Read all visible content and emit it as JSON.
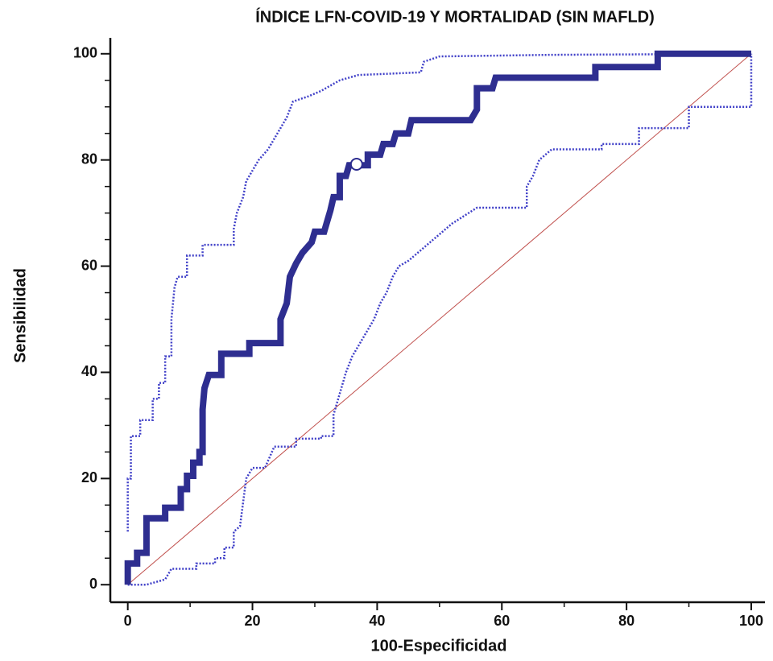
{
  "chart_data": {
    "type": "line",
    "title": "ÍNDICE LFN-COVID-19 Y MORTALIDAD (SIN MAFLD)",
    "x_label": "100-Especificidad",
    "y_label": "Sensibilidad",
    "xlim": [
      -2.8,
      102.2
    ],
    "ylim": [
      -3.3,
      103
    ],
    "xticks": [
      0,
      20,
      40,
      60,
      80,
      100
    ],
    "xminor_ticks": [
      10,
      30,
      50,
      70,
      90
    ],
    "yticks": [
      0,
      20,
      40,
      60,
      80,
      100
    ],
    "yminor_ticks": [
      5,
      10,
      15,
      25,
      30,
      35,
      45,
      50,
      55,
      65,
      70,
      75,
      85,
      90,
      95
    ],
    "series": [
      {
        "style": "solid-thin",
        "color": "#c0504d",
        "x": [
          0,
          100
        ],
        "y": [
          0,
          100
        ]
      },
      {
        "style": "dotted",
        "color": "#4040c8",
        "x": [
          0,
          0,
          0.5,
          0.5,
          2,
          2,
          4,
          4,
          5,
          5,
          6,
          6,
          7,
          7,
          7.5,
          8,
          9.5,
          9.5,
          12,
          12,
          17,
          17,
          17.5,
          18.5,
          19,
          20,
          21,
          22.5,
          23.5,
          24.5,
          25.5,
          26.5,
          29,
          31,
          34,
          37,
          47,
          47.5,
          50,
          68,
          100
        ],
        "y": [
          10,
          20,
          20,
          28,
          28,
          31,
          31,
          35,
          35,
          38,
          38,
          43,
          43,
          50,
          56,
          58,
          58,
          62,
          62,
          64,
          64,
          67,
          70,
          73,
          76,
          78,
          80,
          82,
          84,
          86,
          88,
          91,
          92,
          93,
          95,
          96,
          96.5,
          98.5,
          99.5,
          99.8,
          100
        ]
      },
      {
        "style": "dotted",
        "color": "#4040c8",
        "x": [
          0,
          3,
          6,
          7,
          11,
          11,
          14,
          14,
          15.5,
          15.5,
          17,
          17,
          18,
          19,
          20,
          22,
          23.5,
          27,
          27,
          31,
          31,
          33,
          33,
          34,
          35,
          36,
          37,
          38,
          39.5,
          40.5,
          41.5,
          42.5,
          43.5,
          45,
          47,
          49,
          52,
          56,
          64,
          64,
          65,
          66,
          68,
          76,
          76,
          82,
          82,
          90,
          90,
          100,
          100
        ],
        "y": [
          0,
          0,
          1,
          3,
          3,
          4,
          4,
          5,
          5,
          7,
          7,
          10,
          11,
          20,
          22,
          22,
          26,
          26,
          27.5,
          27.5,
          28,
          28,
          32,
          36,
          40,
          43,
          45,
          47,
          50,
          53,
          55,
          58,
          60,
          61,
          63,
          65,
          68,
          71,
          71,
          75,
          77,
          80,
          82,
          82,
          83,
          83,
          86,
          86,
          90,
          90,
          100
        ]
      },
      {
        "style": "solid-thick",
        "color": "#2e2e90",
        "x": [
          0,
          0,
          1.5,
          1.5,
          3,
          3,
          6,
          6,
          8.5,
          8.5,
          9.5,
          9.5,
          10.5,
          10.5,
          11.5,
          11.5,
          12,
          12,
          12.3,
          13,
          15,
          15,
          19.5,
          19.5,
          24.5,
          24.5,
          25.5,
          26,
          27,
          28,
          29.5,
          30,
          31.5,
          32,
          32.5,
          33,
          34,
          34,
          35,
          35.5,
          38.5,
          38.5,
          40.5,
          41,
          42.5,
          43,
          45,
          45.5,
          55,
          56,
          56,
          58.5,
          59,
          75,
          75,
          85,
          85,
          100
        ],
        "y": [
          0,
          4,
          4,
          6,
          6,
          12.5,
          12.5,
          14.5,
          14.5,
          18,
          18,
          20.5,
          20.5,
          23,
          23,
          25,
          25,
          33,
          37,
          39.5,
          39.5,
          43.5,
          43.5,
          45.5,
          45.5,
          50,
          53,
          58,
          60.5,
          62.5,
          64.5,
          66.5,
          66.5,
          68.5,
          70.5,
          73,
          73,
          77,
          77,
          79,
          79,
          81,
          81,
          83,
          83,
          85,
          85,
          87.5,
          87.5,
          89.5,
          93.5,
          93.5,
          95.5,
          95.5,
          97.5,
          97.5,
          100,
          100
        ]
      }
    ],
    "point": {
      "x": 36.7,
      "y": 79.2,
      "color": "#ffffff"
    }
  }
}
